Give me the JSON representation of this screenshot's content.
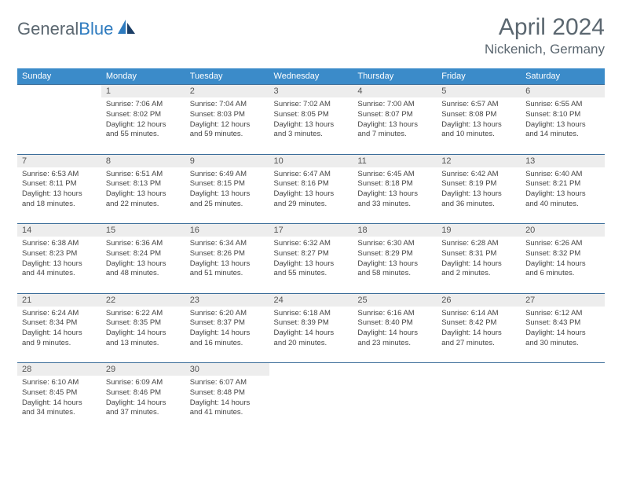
{
  "brand": {
    "part1": "General",
    "part2": "Blue"
  },
  "title": "April 2024",
  "location": "Nickenich, Germany",
  "weekdays": [
    "Sunday",
    "Monday",
    "Tuesday",
    "Wednesday",
    "Thursday",
    "Friday",
    "Saturday"
  ],
  "colors": {
    "header_bg": "#3b8bc9",
    "header_text": "#ffffff",
    "daynum_bg": "#ededed",
    "row_border": "#3b6d99",
    "title_color": "#5b6770",
    "brand_gray": "#5b6770",
    "brand_blue": "#2e7bbf",
    "background": "#ffffff"
  },
  "typography": {
    "title_fontsize": 30,
    "location_fontsize": 17,
    "weekday_fontsize": 11,
    "daynum_fontsize": 11,
    "cell_fontsize": 9.5
  },
  "weeks": [
    {
      "nums": [
        "",
        "1",
        "2",
        "3",
        "4",
        "5",
        "6"
      ],
      "cells": [
        null,
        {
          "sunrise": "Sunrise: 7:06 AM",
          "sunset": "Sunset: 8:02 PM",
          "d1": "Daylight: 12 hours",
          "d2": "and 55 minutes."
        },
        {
          "sunrise": "Sunrise: 7:04 AM",
          "sunset": "Sunset: 8:03 PM",
          "d1": "Daylight: 12 hours",
          "d2": "and 59 minutes."
        },
        {
          "sunrise": "Sunrise: 7:02 AM",
          "sunset": "Sunset: 8:05 PM",
          "d1": "Daylight: 13 hours",
          "d2": "and 3 minutes."
        },
        {
          "sunrise": "Sunrise: 7:00 AM",
          "sunset": "Sunset: 8:07 PM",
          "d1": "Daylight: 13 hours",
          "d2": "and 7 minutes."
        },
        {
          "sunrise": "Sunrise: 6:57 AM",
          "sunset": "Sunset: 8:08 PM",
          "d1": "Daylight: 13 hours",
          "d2": "and 10 minutes."
        },
        {
          "sunrise": "Sunrise: 6:55 AM",
          "sunset": "Sunset: 8:10 PM",
          "d1": "Daylight: 13 hours",
          "d2": "and 14 minutes."
        }
      ]
    },
    {
      "nums": [
        "7",
        "8",
        "9",
        "10",
        "11",
        "12",
        "13"
      ],
      "cells": [
        {
          "sunrise": "Sunrise: 6:53 AM",
          "sunset": "Sunset: 8:11 PM",
          "d1": "Daylight: 13 hours",
          "d2": "and 18 minutes."
        },
        {
          "sunrise": "Sunrise: 6:51 AM",
          "sunset": "Sunset: 8:13 PM",
          "d1": "Daylight: 13 hours",
          "d2": "and 22 minutes."
        },
        {
          "sunrise": "Sunrise: 6:49 AM",
          "sunset": "Sunset: 8:15 PM",
          "d1": "Daylight: 13 hours",
          "d2": "and 25 minutes."
        },
        {
          "sunrise": "Sunrise: 6:47 AM",
          "sunset": "Sunset: 8:16 PM",
          "d1": "Daylight: 13 hours",
          "d2": "and 29 minutes."
        },
        {
          "sunrise": "Sunrise: 6:45 AM",
          "sunset": "Sunset: 8:18 PM",
          "d1": "Daylight: 13 hours",
          "d2": "and 33 minutes."
        },
        {
          "sunrise": "Sunrise: 6:42 AM",
          "sunset": "Sunset: 8:19 PM",
          "d1": "Daylight: 13 hours",
          "d2": "and 36 minutes."
        },
        {
          "sunrise": "Sunrise: 6:40 AM",
          "sunset": "Sunset: 8:21 PM",
          "d1": "Daylight: 13 hours",
          "d2": "and 40 minutes."
        }
      ]
    },
    {
      "nums": [
        "14",
        "15",
        "16",
        "17",
        "18",
        "19",
        "20"
      ],
      "cells": [
        {
          "sunrise": "Sunrise: 6:38 AM",
          "sunset": "Sunset: 8:23 PM",
          "d1": "Daylight: 13 hours",
          "d2": "and 44 minutes."
        },
        {
          "sunrise": "Sunrise: 6:36 AM",
          "sunset": "Sunset: 8:24 PM",
          "d1": "Daylight: 13 hours",
          "d2": "and 48 minutes."
        },
        {
          "sunrise": "Sunrise: 6:34 AM",
          "sunset": "Sunset: 8:26 PM",
          "d1": "Daylight: 13 hours",
          "d2": "and 51 minutes."
        },
        {
          "sunrise": "Sunrise: 6:32 AM",
          "sunset": "Sunset: 8:27 PM",
          "d1": "Daylight: 13 hours",
          "d2": "and 55 minutes."
        },
        {
          "sunrise": "Sunrise: 6:30 AM",
          "sunset": "Sunset: 8:29 PM",
          "d1": "Daylight: 13 hours",
          "d2": "and 58 minutes."
        },
        {
          "sunrise": "Sunrise: 6:28 AM",
          "sunset": "Sunset: 8:31 PM",
          "d1": "Daylight: 14 hours",
          "d2": "and 2 minutes."
        },
        {
          "sunrise": "Sunrise: 6:26 AM",
          "sunset": "Sunset: 8:32 PM",
          "d1": "Daylight: 14 hours",
          "d2": "and 6 minutes."
        }
      ]
    },
    {
      "nums": [
        "21",
        "22",
        "23",
        "24",
        "25",
        "26",
        "27"
      ],
      "cells": [
        {
          "sunrise": "Sunrise: 6:24 AM",
          "sunset": "Sunset: 8:34 PM",
          "d1": "Daylight: 14 hours",
          "d2": "and 9 minutes."
        },
        {
          "sunrise": "Sunrise: 6:22 AM",
          "sunset": "Sunset: 8:35 PM",
          "d1": "Daylight: 14 hours",
          "d2": "and 13 minutes."
        },
        {
          "sunrise": "Sunrise: 6:20 AM",
          "sunset": "Sunset: 8:37 PM",
          "d1": "Daylight: 14 hours",
          "d2": "and 16 minutes."
        },
        {
          "sunrise": "Sunrise: 6:18 AM",
          "sunset": "Sunset: 8:39 PM",
          "d1": "Daylight: 14 hours",
          "d2": "and 20 minutes."
        },
        {
          "sunrise": "Sunrise: 6:16 AM",
          "sunset": "Sunset: 8:40 PM",
          "d1": "Daylight: 14 hours",
          "d2": "and 23 minutes."
        },
        {
          "sunrise": "Sunrise: 6:14 AM",
          "sunset": "Sunset: 8:42 PM",
          "d1": "Daylight: 14 hours",
          "d2": "and 27 minutes."
        },
        {
          "sunrise": "Sunrise: 6:12 AM",
          "sunset": "Sunset: 8:43 PM",
          "d1": "Daylight: 14 hours",
          "d2": "and 30 minutes."
        }
      ]
    },
    {
      "nums": [
        "28",
        "29",
        "30",
        "",
        "",
        "",
        ""
      ],
      "cells": [
        {
          "sunrise": "Sunrise: 6:10 AM",
          "sunset": "Sunset: 8:45 PM",
          "d1": "Daylight: 14 hours",
          "d2": "and 34 minutes."
        },
        {
          "sunrise": "Sunrise: 6:09 AM",
          "sunset": "Sunset: 8:46 PM",
          "d1": "Daylight: 14 hours",
          "d2": "and 37 minutes."
        },
        {
          "sunrise": "Sunrise: 6:07 AM",
          "sunset": "Sunset: 8:48 PM",
          "d1": "Daylight: 14 hours",
          "d2": "and 41 minutes."
        },
        null,
        null,
        null,
        null
      ]
    }
  ]
}
